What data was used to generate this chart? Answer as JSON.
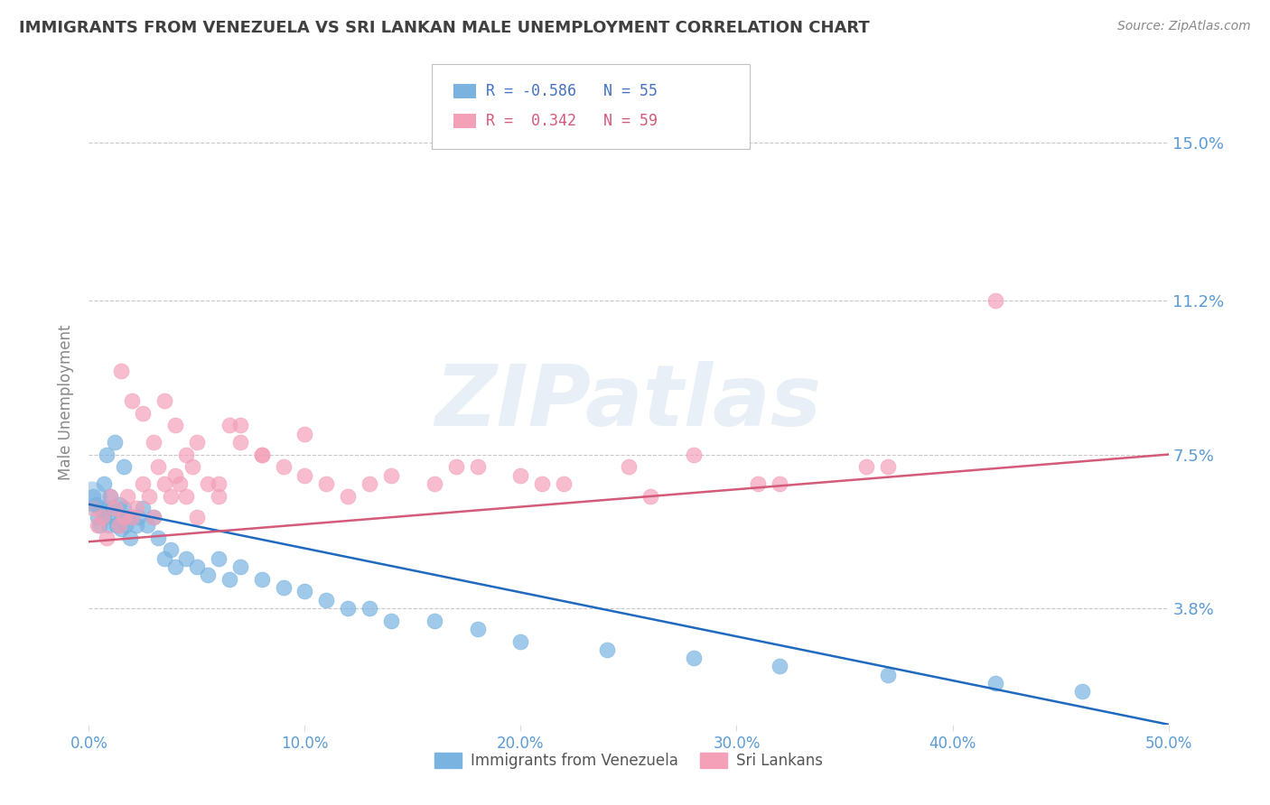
{
  "title": "IMMIGRANTS FROM VENEZUELA VS SRI LANKAN MALE UNEMPLOYMENT CORRELATION CHART",
  "source_text": "Source: ZipAtlas.com",
  "ylabel": "Male Unemployment",
  "xlim": [
    0.0,
    0.5
  ],
  "ylim": [
    0.01,
    0.165
  ],
  "yticks": [
    0.038,
    0.075,
    0.112,
    0.15
  ],
  "ytick_labels": [
    "3.8%",
    "7.5%",
    "11.2%",
    "15.0%"
  ],
  "xticks": [
    0.0,
    0.1,
    0.2,
    0.3,
    0.4,
    0.5
  ],
  "xtick_labels": [
    "0.0%",
    "10.0%",
    "20.0%",
    "30.0%",
    "40.0%",
    "50.0%"
  ],
  "series1_name": "Immigrants from Venezuela",
  "series1_color": "#7ab3e0",
  "series1_line_color": "#1f6abf",
  "series1_R": -0.586,
  "series1_N": 55,
  "series2_name": "Sri Lankans",
  "series2_color": "#f4a0b8",
  "series2_line_color": "#d45a7a",
  "series2_R": 0.342,
  "series2_N": 59,
  "watermark": "ZIPatlas",
  "background_color": "#ffffff",
  "grid_color": "#c8c8c8",
  "title_color": "#404040",
  "tick_label_color": "#5b9bd5",
  "blue_line_start_y": 0.063,
  "blue_line_end_y": 0.01,
  "pink_line_start_y": 0.054,
  "pink_line_end_y": 0.075,
  "blue_scatter_x": [
    0.002,
    0.003,
    0.004,
    0.005,
    0.006,
    0.007,
    0.007,
    0.008,
    0.009,
    0.01,
    0.011,
    0.012,
    0.013,
    0.014,
    0.015,
    0.015,
    0.016,
    0.017,
    0.018,
    0.019,
    0.02,
    0.022,
    0.023,
    0.025,
    0.027,
    0.03,
    0.032,
    0.035,
    0.038,
    0.04,
    0.045,
    0.05,
    0.055,
    0.06,
    0.065,
    0.07,
    0.08,
    0.09,
    0.1,
    0.11,
    0.12,
    0.13,
    0.14,
    0.16,
    0.18,
    0.2,
    0.24,
    0.28,
    0.32,
    0.37,
    0.42,
    0.46,
    0.008,
    0.012,
    0.016
  ],
  "blue_scatter_y": [
    0.065,
    0.063,
    0.06,
    0.058,
    0.062,
    0.068,
    0.06,
    0.062,
    0.058,
    0.065,
    0.062,
    0.06,
    0.058,
    0.063,
    0.06,
    0.057,
    0.062,
    0.058,
    0.06,
    0.055,
    0.06,
    0.058,
    0.06,
    0.062,
    0.058,
    0.06,
    0.055,
    0.05,
    0.052,
    0.048,
    0.05,
    0.048,
    0.046,
    0.05,
    0.045,
    0.048,
    0.045,
    0.043,
    0.042,
    0.04,
    0.038,
    0.038,
    0.035,
    0.035,
    0.033,
    0.03,
    0.028,
    0.026,
    0.024,
    0.022,
    0.02,
    0.018,
    0.075,
    0.078,
    0.072
  ],
  "pink_scatter_x": [
    0.002,
    0.004,
    0.006,
    0.008,
    0.01,
    0.012,
    0.014,
    0.016,
    0.018,
    0.02,
    0.022,
    0.025,
    0.028,
    0.03,
    0.032,
    0.035,
    0.038,
    0.04,
    0.042,
    0.045,
    0.048,
    0.05,
    0.055,
    0.06,
    0.065,
    0.07,
    0.08,
    0.09,
    0.1,
    0.11,
    0.12,
    0.14,
    0.16,
    0.18,
    0.2,
    0.22,
    0.25,
    0.28,
    0.32,
    0.37,
    0.015,
    0.02,
    0.025,
    0.03,
    0.035,
    0.04,
    0.045,
    0.05,
    0.06,
    0.07,
    0.08,
    0.1,
    0.13,
    0.17,
    0.21,
    0.26,
    0.31,
    0.36,
    0.42
  ],
  "pink_scatter_y": [
    0.062,
    0.058,
    0.06,
    0.055,
    0.065,
    0.062,
    0.058,
    0.06,
    0.065,
    0.06,
    0.062,
    0.068,
    0.065,
    0.06,
    0.072,
    0.068,
    0.065,
    0.07,
    0.068,
    0.065,
    0.072,
    0.06,
    0.068,
    0.065,
    0.082,
    0.078,
    0.075,
    0.072,
    0.07,
    0.068,
    0.065,
    0.07,
    0.068,
    0.072,
    0.07,
    0.068,
    0.072,
    0.075,
    0.068,
    0.072,
    0.095,
    0.088,
    0.085,
    0.078,
    0.088,
    0.082,
    0.075,
    0.078,
    0.068,
    0.082,
    0.075,
    0.08,
    0.068,
    0.072,
    0.068,
    0.065,
    0.068,
    0.072,
    0.112
  ]
}
